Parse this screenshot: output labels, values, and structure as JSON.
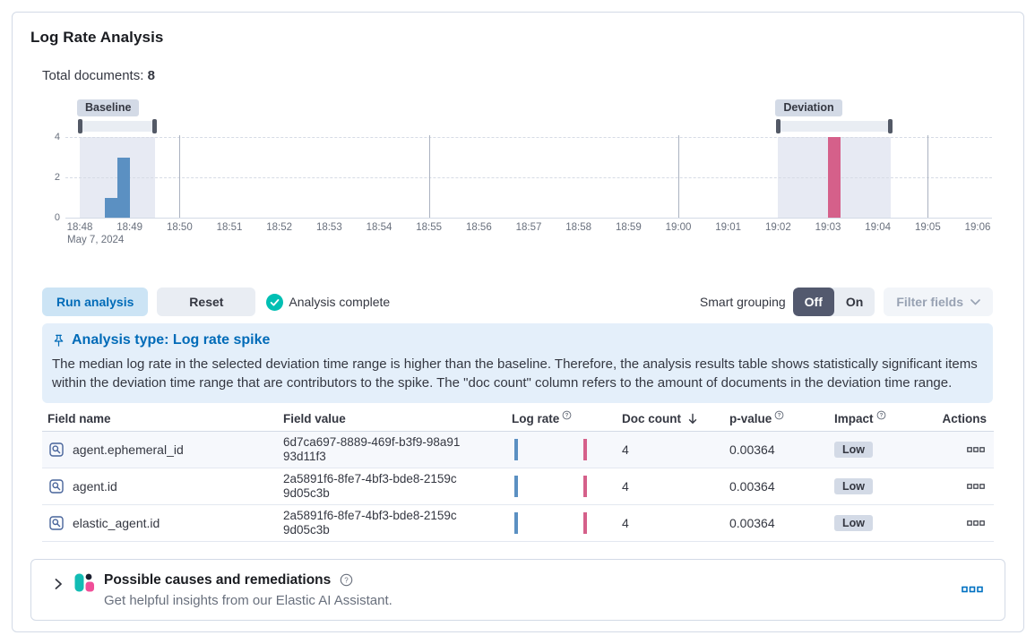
{
  "panel": {
    "title": "Log Rate Analysis"
  },
  "summary": {
    "label": "Total documents:",
    "value": "8"
  },
  "chart_data": {
    "type": "bar",
    "title": "Log rate histogram",
    "x_axis": {
      "start": "18:48",
      "end": "19:06",
      "tick_interval_minutes": 1,
      "date_label": "May 7, 2024"
    },
    "y_axis": {
      "ticks": [
        0,
        2,
        4
      ],
      "max": 4
    },
    "bucket_seconds": 15,
    "bars": [
      {
        "time": "18:48:30",
        "value": 1,
        "series": "baseline"
      },
      {
        "time": "18:48:45",
        "value": 3,
        "series": "baseline"
      },
      {
        "time": "19:03:00",
        "value": 4,
        "series": "deviation"
      }
    ],
    "brushes": [
      {
        "label": "Baseline",
        "from": "18:48:00",
        "to": "18:49:30"
      },
      {
        "label": "Deviation",
        "from": "19:02:00",
        "to": "19:04:15"
      }
    ],
    "vertical_gridline_times": [
      "18:50",
      "18:55",
      "19:00",
      "19:05"
    ],
    "colors": {
      "baseline_bar": "#5b90c2",
      "deviation_bar": "#d5608a",
      "region": "#e7eaf3"
    }
  },
  "controls": {
    "run_button": "Run analysis",
    "reset_button": "Reset",
    "status": "Analysis complete",
    "smart_grouping_label": "Smart grouping",
    "toggle_off": "Off",
    "toggle_on": "On",
    "filter_fields": "Filter fields"
  },
  "callout": {
    "title": "Analysis type: Log rate spike",
    "body": "The median log rate in the selected deviation time range is higher than the baseline. Therefore, the analysis results table shows statistically significant items within the deviation time range that are contributors to the spike. The \"doc count\" column refers to the amount of documents in the deviation time range."
  },
  "table": {
    "columns": [
      {
        "label": "Field name"
      },
      {
        "label": "Field value"
      },
      {
        "label": "Log rate",
        "info": true
      },
      {
        "label": "Doc count",
        "sort": "desc"
      },
      {
        "label": "p-value",
        "info": true
      },
      {
        "label": "Impact",
        "info": true
      },
      {
        "label": "Actions",
        "align": "right"
      }
    ],
    "rows": [
      {
        "field_name": "agent.ephemeral_id",
        "field_value": "6d7ca697-8889-469f-b3f9-98a9193d11f3",
        "doc_count": "4",
        "p_value": "0.00364",
        "impact": "Low"
      },
      {
        "field_name": "agent.id",
        "field_value": "2a5891f6-8fe7-4bf3-bde8-2159c9d05c3b",
        "doc_count": "4",
        "p_value": "0.00364",
        "impact": "Low"
      },
      {
        "field_name": "elastic_agent.id",
        "field_value": "2a5891f6-8fe7-4bf3-bde8-2159c9d05c3b",
        "doc_count": "4",
        "p_value": "0.00364",
        "impact": "Low"
      }
    ]
  },
  "accordion": {
    "title": "Possible causes and remediations",
    "subtitle": "Get helpful insights from our Elastic AI Assistant."
  }
}
